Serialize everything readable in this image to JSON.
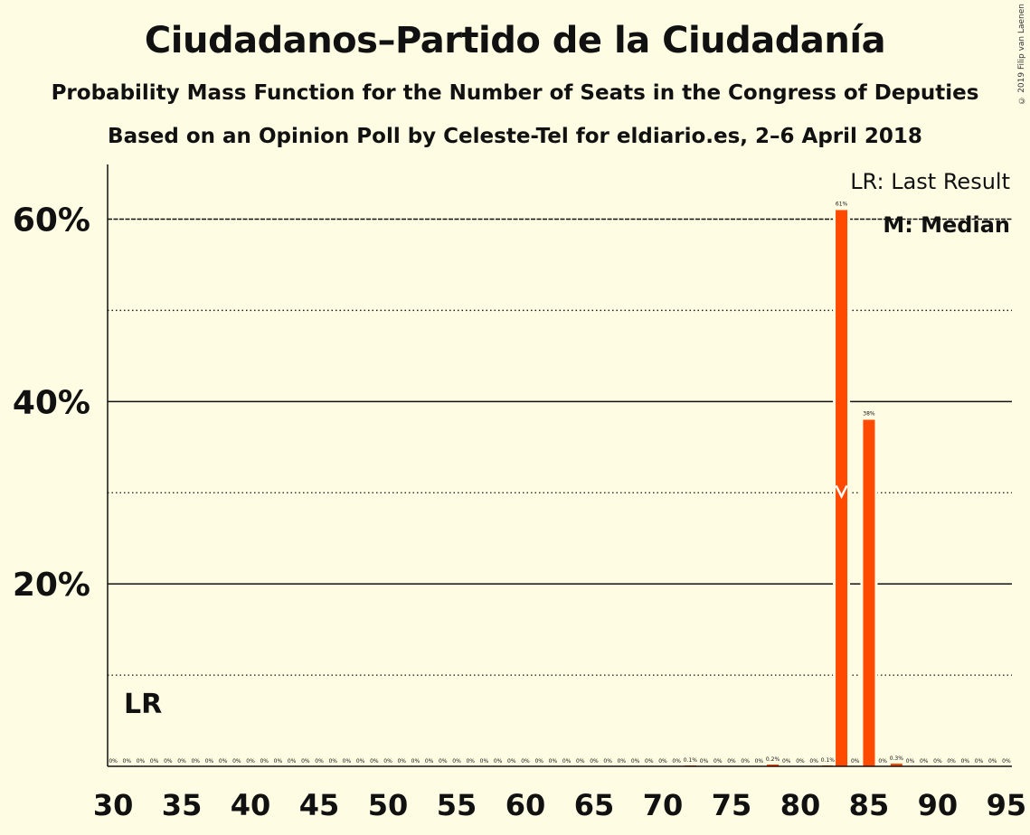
{
  "title": "Ciudadanos–Partido de la Ciudadanía",
  "subtitle": "Probability Mass Function for the Number of Seats in the Congress of Deputies",
  "subtitle2": "Based on an Opinion Poll by Celeste-Tel for eldiario.es, 2–6 April 2018",
  "copyright": "© 2019 Filip van Laenen",
  "legend": {
    "last_result": "LR: Last Result",
    "median": "M: Median"
  },
  "lr_marker": "LR",
  "colors": {
    "bar": "#FF4A00",
    "background": "#FEFCE3",
    "axis": "#111111"
  },
  "chart_data": {
    "type": "bar",
    "x": [
      30,
      31,
      32,
      33,
      34,
      35,
      36,
      37,
      38,
      39,
      40,
      41,
      42,
      43,
      44,
      45,
      46,
      47,
      48,
      49,
      50,
      51,
      52,
      53,
      54,
      55,
      56,
      57,
      58,
      59,
      60,
      61,
      62,
      63,
      64,
      65,
      66,
      67,
      68,
      69,
      70,
      71,
      72,
      73,
      74,
      75,
      76,
      77,
      78,
      79,
      80,
      81,
      82,
      83,
      84,
      85,
      86,
      87,
      88,
      89,
      90,
      91,
      92,
      93,
      94,
      95
    ],
    "values": [
      0,
      0,
      0,
      0,
      0,
      0,
      0,
      0,
      0,
      0,
      0,
      0,
      0,
      0,
      0,
      0,
      0,
      0,
      0,
      0,
      0,
      0,
      0,
      0,
      0,
      0,
      0,
      0,
      0,
      0,
      0,
      0,
      0,
      0,
      0,
      0,
      0,
      0,
      0,
      0,
      0,
      0,
      0.1,
      0,
      0,
      0,
      0,
      0,
      0.2,
      0,
      0,
      0,
      0.1,
      61,
      0,
      38,
      0,
      0.3,
      0,
      0,
      0,
      0,
      0,
      0,
      0,
      0
    ],
    "labels": [
      "0%",
      "0%",
      "0%",
      "0%",
      "0%",
      "0%",
      "0%",
      "0%",
      "0%",
      "0%",
      "0%",
      "0%",
      "0%",
      "0%",
      "0%",
      "0%",
      "0%",
      "0%",
      "0%",
      "0%",
      "0%",
      "0%",
      "0%",
      "0%",
      "0%",
      "0%",
      "0%",
      "0%",
      "0%",
      "0%",
      "0%",
      "0%",
      "0%",
      "0%",
      "0%",
      "0%",
      "0%",
      "0%",
      "0%",
      "0%",
      "0%",
      "0%",
      "0.1%",
      "0%",
      "0%",
      "0%",
      "0%",
      "0%",
      "0.2%",
      "0%",
      "0%",
      "0%",
      "0.1%",
      "61%",
      "0%",
      "38%",
      "0%",
      "0.3%",
      "0%",
      "0%",
      "0%",
      "0%",
      "0%",
      "0%",
      "0%",
      "0%"
    ],
    "xticks": [
      30,
      35,
      40,
      45,
      50,
      55,
      60,
      65,
      70,
      75,
      80,
      85,
      90,
      95
    ],
    "xtick_labels": [
      "30",
      "35",
      "40",
      "45",
      "50",
      "55",
      "60",
      "65",
      "70",
      "75",
      "80",
      "85",
      "90",
      "95"
    ],
    "yticks": [
      20,
      40,
      60
    ],
    "ytick_labels": [
      "20%",
      "40%",
      "60%"
    ],
    "minor_gridlines": [
      10,
      30,
      50
    ],
    "ylim": [
      0,
      66
    ],
    "xlim": [
      29.6,
      95.4
    ],
    "median_seat": 83,
    "last_result_seat": 32,
    "grid": true,
    "legend_position": "top-right"
  }
}
